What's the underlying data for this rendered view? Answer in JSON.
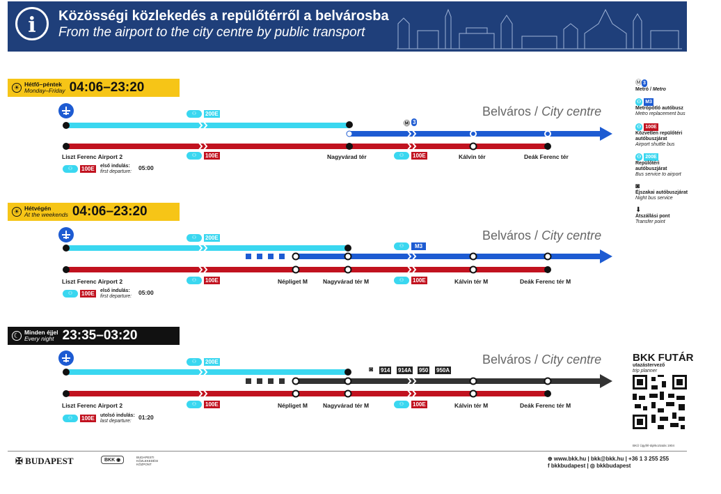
{
  "header": {
    "title_hu": "Közösségi közlekedés a repülőtérről a belvárosba",
    "title_en": "From the airport to the city centre by public transport"
  },
  "sections": [
    {
      "day_hu": "Hétfő–péntek",
      "day_en": "Monday–Friday",
      "hours": "04:06–23:20",
      "city_hu": "Belváros /",
      "city_en": "City centre",
      "line_cyan": "200E",
      "line_red": "100E",
      "transfer_line": "3",
      "stops": [
        "Liszt Ferenc Airport 2",
        "Nagyvárad tér",
        "Kálvin tér",
        "Deák Ferenc tér"
      ],
      "first_label_hu": "első indulás:",
      "first_label_en": "first departure:",
      "first_time": "05:00"
    },
    {
      "day_hu": "Hétvégén",
      "day_en": "At the weekends",
      "hours": "04:06–23:20",
      "city_hu": "Belváros /",
      "city_en": "City centre",
      "line_cyan": "200E",
      "line_red": "100E",
      "transfer_line": "M3",
      "stops": [
        "Liszt Ferenc Airport 2",
        "Népliget M",
        "Nagyvárad tér M",
        "Kálvin tér M",
        "Deák Ferenc tér M"
      ],
      "first_label_hu": "első indulás:",
      "first_label_en": "first departure:",
      "first_time": "05:00"
    },
    {
      "day_hu": "Minden éjjel",
      "day_en": "Every night",
      "hours": "23:35–03:20",
      "city_hu": "Belváros /",
      "city_en": "City centre",
      "line_cyan": "200E",
      "line_red": "100E",
      "night_lines": [
        "914",
        "914A",
        "950",
        "950A"
      ],
      "stops": [
        "Liszt Ferenc Airport 2",
        "Népliget M",
        "Nagyvárad tér M",
        "Kálvin tér M",
        "Deák Ferenc tér M"
      ],
      "first_label_hu": "utolsó indulás:",
      "first_label_en": "last departure:",
      "first_time": "01:20"
    }
  ],
  "legend": [
    {
      "hu": "Metró /",
      "en": "Metro"
    },
    {
      "code": "M3",
      "hu": "Metrópótló autóbusz",
      "en": "Metro replacement bus"
    },
    {
      "code": "100E",
      "hu": "Közvetlen repülőtéri autóbuszjárat",
      "en": "Airport shuttle bus"
    },
    {
      "code": "200E",
      "hu": "Repülőtéri autóbuszjárat",
      "en": "Bus service to airport"
    },
    {
      "hu": "Éjszakai autóbuszjárat",
      "en": "Night bus service"
    },
    {
      "hu": "Átszállási pont",
      "en": "Transfer point"
    }
  ],
  "futar": {
    "title": "BKK FUTÁR",
    "sub1": "utazástervező",
    "sub2": "trip planner",
    "tiny": "BKÜ Ügyfél-tájékoztatás 1904"
  },
  "footer": {
    "city": "BUDAPEST",
    "bkk": "BKK",
    "bkk_name": "BUDAPESTI KÖZLEKEDÉSI KÖZPONT",
    "contact1": "⊕ www.bkk.hu | bkk@bkk.hu | +36 1 3 255 255",
    "contact2": "f bkkbudapest | ◎ bkkbudapest"
  },
  "colors": {
    "header_bg": "#1f3f7a",
    "bus_200e": "#3ad7f0",
    "bus_100e": "#c1121f",
    "metro": "#1d5bd2",
    "night": "#333333",
    "badge_day": "#f6c517"
  }
}
